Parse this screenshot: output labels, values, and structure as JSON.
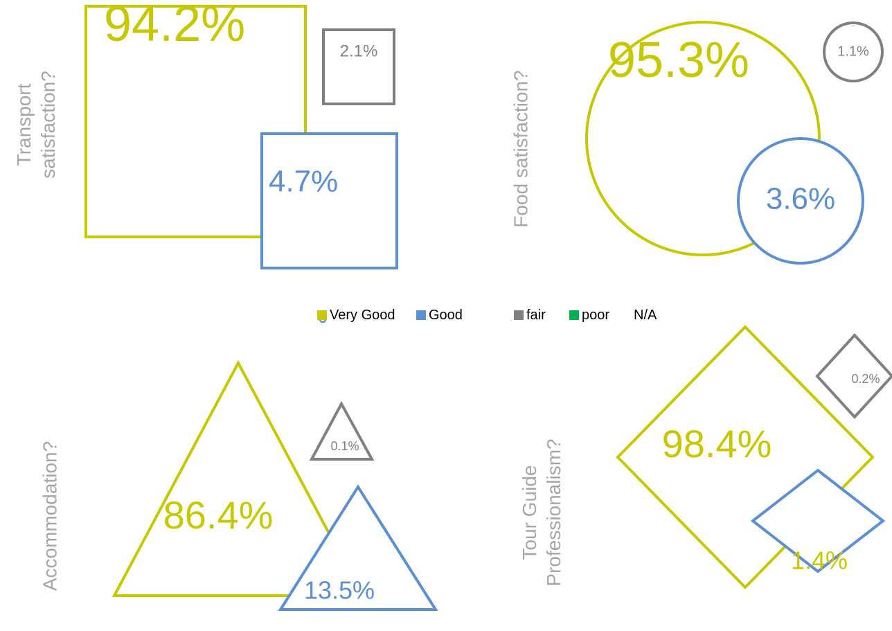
{
  "chart_data": [
    {
      "type": "square",
      "title": "Transport satisfaction?",
      "values": [
        94.2,
        4.7,
        2.1
      ],
      "value_labels": [
        "94.2%",
        "4.7%",
        "2.1%"
      ]
    },
    {
      "type": "circle",
      "title": "Food satisfaction?",
      "values": [
        95.3,
        3.6,
        1.1
      ],
      "value_labels": [
        "95.3%",
        "3.6%",
        "1.1%"
      ]
    },
    {
      "type": "triangle",
      "title": "Accommodation?",
      "values": [
        86.4,
        13.5,
        0.1
      ],
      "value_labels": [
        "86.4%",
        "13.5%",
        "0.1%"
      ]
    },
    {
      "type": "diamond",
      "title": "Tour Guide Professionalism?",
      "values": [
        98.4,
        1.4,
        0.2
      ],
      "value_labels": [
        "98.4%",
        "1.4%",
        "0.2%"
      ],
      "label_colors": [
        "#c8c800",
        "#c8c800",
        "#808080"
      ]
    }
  ],
  "legend": {
    "items": [
      {
        "name": "Very Good",
        "color": "#c8c800"
      },
      {
        "name": "Good",
        "color": "#5b8fd4"
      },
      {
        "name": "fair",
        "color": "#808080"
      },
      {
        "name": "poor",
        "color": "#00b050"
      },
      {
        "name": "N/A"
      }
    ]
  }
}
